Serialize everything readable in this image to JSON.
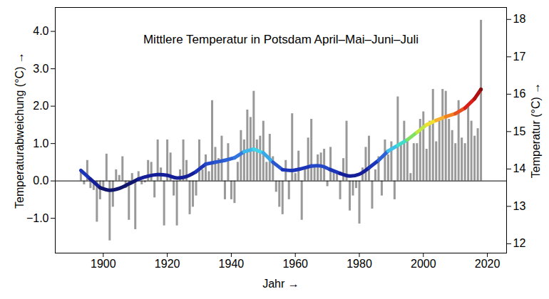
{
  "chart_data": {
    "type": "bar",
    "title": "Mittlere Temperatur in Potsdam April–Mai–Juni–Juli",
    "x_label": "Jahr",
    "y_label": "Temperaturabweichung (°C)",
    "y2_label": "Temperatur (°C)",
    "x": [
      1893,
      1894,
      1895,
      1896,
      1897,
      1898,
      1899,
      1900,
      1901,
      1902,
      1903,
      1904,
      1905,
      1906,
      1907,
      1908,
      1909,
      1910,
      1911,
      1912,
      1913,
      1914,
      1915,
      1916,
      1917,
      1918,
      1919,
      1920,
      1921,
      1922,
      1923,
      1924,
      1925,
      1926,
      1927,
      1928,
      1929,
      1930,
      1931,
      1932,
      1933,
      1934,
      1935,
      1936,
      1937,
      1938,
      1939,
      1940,
      1941,
      1942,
      1943,
      1944,
      1945,
      1946,
      1947,
      1948,
      1949,
      1950,
      1951,
      1952,
      1953,
      1954,
      1955,
      1956,
      1957,
      1958,
      1959,
      1960,
      1961,
      1962,
      1963,
      1964,
      1965,
      1966,
      1967,
      1968,
      1969,
      1970,
      1971,
      1972,
      1973,
      1974,
      1975,
      1976,
      1977,
      1978,
      1979,
      1980,
      1981,
      1982,
      1983,
      1984,
      1985,
      1986,
      1987,
      1988,
      1989,
      1990,
      1991,
      1992,
      1993,
      1994,
      1995,
      1996,
      1997,
      1998,
      1999,
      2000,
      2001,
      2002,
      2003,
      2004,
      2005,
      2006,
      2007,
      2008,
      2009,
      2010,
      2011,
      2012,
      2013,
      2014,
      2015,
      2016,
      2017,
      2018
    ],
    "series": [
      {
        "type": "bar",
        "color": "#999999",
        "values": [
          0.3,
          -0.1,
          0.55,
          -0.2,
          -0.25,
          -1.1,
          -0.5,
          -0.2,
          0.72,
          -1.6,
          -0.7,
          0.3,
          0.15,
          0.65,
          -0.2,
          -1.05,
          0.2,
          -1.3,
          0.25,
          -0.1,
          -0.05,
          0.55,
          0.5,
          -0.45,
          1.1,
          0.35,
          -1.2,
          1.1,
          0.75,
          -0.4,
          -1.2,
          0.3,
          1.1,
          0.55,
          -0.9,
          -0.7,
          -0.4,
          1.1,
          0.3,
          0.7,
          0.25,
          2.15,
          0.9,
          0.6,
          1.2,
          -0.5,
          1.0,
          -0.5,
          -0.6,
          0.5,
          1.35,
          1.1,
          1.9,
          1.7,
          2.4,
          1.1,
          1.2,
          1.6,
          0.5,
          1.25,
          0.65,
          -0.3,
          -0.7,
          -0.9,
          0.55,
          -0.5,
          1.8,
          0.2,
          0.8,
          -1.05,
          0.3,
          1.15,
          1.65,
          0.4,
          0.7,
          0.75,
          0.85,
          -0.15,
          0.9,
          0.25,
          0.2,
          -0.5,
          0.6,
          1.6,
          -0.8,
          -0.4,
          -0.2,
          -1.15,
          0.35,
          0.9,
          1.2,
          -0.75,
          0.3,
          0.65,
          -0.4,
          1.1,
          0.7,
          1.05,
          -0.5,
          2.25,
          1.0,
          1.6,
          1.05,
          0.2,
          1.0,
          1.0,
          1.65,
          1.85,
          0.85,
          1.6,
          2.45,
          1.05,
          1.6,
          2.45,
          2.4,
          1.65,
          1.35,
          1.0,
          2.15,
          1.15,
          1.0,
          2.0,
          1.6,
          1.2,
          1.4,
          4.3
        ]
      },
      {
        "type": "line",
        "x": [
          1893,
          1896,
          1899,
          1902,
          1905,
          1908,
          1911,
          1914,
          1917,
          1920,
          1923,
          1926,
          1929,
          1932,
          1935,
          1938,
          1941,
          1944,
          1947,
          1950,
          1953,
          1956,
          1959,
          1962,
          1965,
          1968,
          1971,
          1974,
          1977,
          1980,
          1983,
          1986,
          1989,
          1992,
          1995,
          1998,
          2001,
          2004,
          2007,
          2010,
          2013,
          2016,
          2018
        ],
        "values": [
          0.28,
          0.05,
          -0.18,
          -0.25,
          -0.2,
          -0.08,
          0.05,
          0.13,
          0.17,
          0.15,
          0.08,
          0.12,
          0.25,
          0.45,
          0.5,
          0.55,
          0.62,
          0.78,
          0.85,
          0.75,
          0.5,
          0.3,
          0.28,
          0.33,
          0.4,
          0.4,
          0.3,
          0.2,
          0.13,
          0.18,
          0.35,
          0.55,
          0.8,
          0.95,
          1.1,
          1.3,
          1.5,
          1.62,
          1.72,
          1.8,
          1.95,
          2.2,
          2.45
        ],
        "colors": [
          "#1c34b8",
          "#141e98",
          "#10166e",
          "#10166e",
          "#10166e",
          "#10166e",
          "#141e98",
          "#141e98",
          "#141e98",
          "#141e98",
          "#141e98",
          "#141e98",
          "#1c34b8",
          "#2448c8",
          "#2a56d0",
          "#2c62d8",
          "#3078e0",
          "#3cb8ec",
          "#40d4ea",
          "#38a8e8",
          "#2a56d0",
          "#1c34b8",
          "#1c34b8",
          "#1c34b8",
          "#2448c8",
          "#2448c8",
          "#1c34b8",
          "#141e98",
          "#141e98",
          "#141e98",
          "#1c34b8",
          "#2c62d8",
          "#3cc0ec",
          "#40dcc8",
          "#80e060",
          "#c0e840",
          "#f0e030",
          "#f8b030",
          "#f08020",
          "#e85020",
          "#d82018",
          "#b01010",
          "#801010"
        ]
      }
    ],
    "xlim": [
      1885,
      2026
    ],
    "xticks": [
      1900,
      1920,
      1940,
      1960,
      1980,
      2000,
      2020
    ],
    "ylim": [
      -1.93,
      4.64
    ],
    "yticks": [
      -1,
      0,
      1,
      2,
      3,
      4
    ],
    "y2lim": [
      11.75,
      18.32
    ],
    "y2ticks": [
      12,
      13,
      14,
      15,
      16,
      17,
      18
    ],
    "grid": false
  }
}
